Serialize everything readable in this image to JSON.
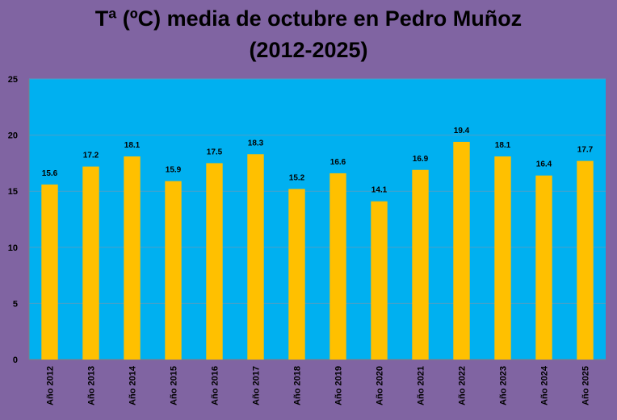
{
  "title_lines": [
    "Tª (ºC) media de octubre en Pedro Muñoz",
    "(2012-2025)"
  ],
  "colors": {
    "page_background": "#8064a2",
    "plot_background": "#00b0f0",
    "bar": "#ffc000",
    "gridline": "#4aa0c8"
  },
  "chart_data": {
    "type": "bar",
    "title": "Tª (ºC) media de octubre en Pedro Muñoz (2012-2025)",
    "categories": [
      "Año 2012",
      "Año 2013",
      "Año 2014",
      "Año 2015",
      "Año 2016",
      "Año 2017",
      "Año 2018",
      "Año 2019",
      "Año 2020",
      "Año 2021",
      "Año 2022",
      "Año 2023",
      "Año 2024",
      "Año 2025"
    ],
    "values": [
      15.6,
      17.2,
      18.1,
      15.9,
      17.5,
      18.3,
      15.2,
      16.6,
      14.1,
      16.9,
      19.4,
      18.1,
      16.4,
      17.7
    ],
    "value_labels": [
      "15.6",
      "17.2",
      "18.1",
      "15.9",
      "17.5",
      "18.3",
      "15.2",
      "16.6",
      "14.1",
      "16.9",
      "19.4",
      "18.1",
      "16.4",
      "17.7"
    ],
    "yticks": [
      0,
      5,
      10,
      15,
      20,
      25
    ],
    "ylim": [
      0,
      25
    ],
    "xlabel": "",
    "ylabel": "",
    "grid": true,
    "legend": "none"
  }
}
